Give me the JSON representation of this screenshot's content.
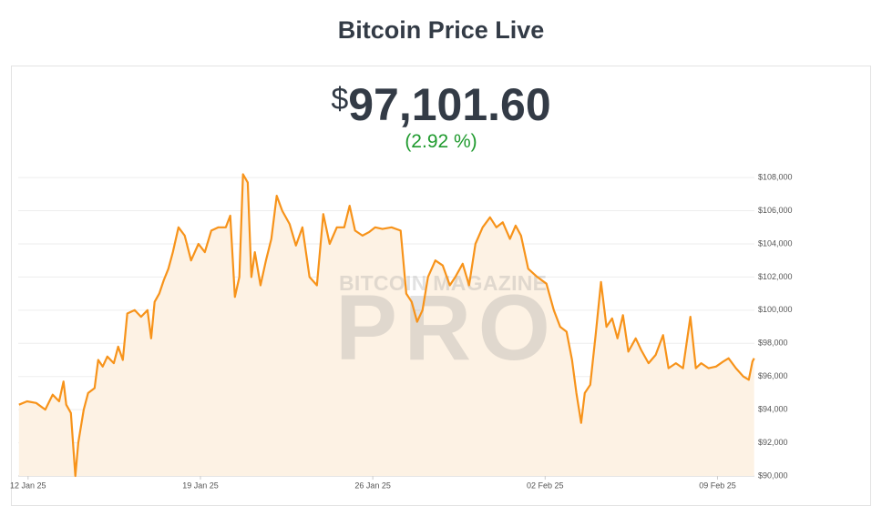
{
  "header": {
    "title": "Bitcoin Price Live",
    "currency": "$",
    "price": "97,101.60",
    "change": "(2.92 %)"
  },
  "watermark": {
    "top": "BITCOIN MAGAZINE",
    "main": "PRO"
  },
  "chart_data": {
    "type": "line",
    "x": [
      -0.37,
      -0.04,
      0.33,
      0.7,
      1.0,
      1.26,
      1.44,
      1.55,
      1.74,
      1.92,
      2.04,
      2.26,
      2.44,
      2.7,
      2.85,
      3.03,
      3.22,
      3.48,
      3.66,
      3.85,
      4.03,
      4.33,
      4.59,
      4.85,
      5.0,
      5.14,
      5.33,
      5.51,
      5.7,
      5.88,
      6.11,
      6.36,
      6.62,
      6.92,
      7.18,
      7.44,
      7.73,
      8.03,
      8.21,
      8.4,
      8.58,
      8.73,
      8.92,
      9.07,
      9.21,
      9.44,
      9.66,
      9.88,
      10.1,
      10.32,
      10.62,
      10.88,
      11.14,
      11.43,
      11.73,
      11.99,
      12.25,
      12.54,
      12.84,
      13.06,
      13.28,
      13.58,
      13.84,
      14.1,
      14.39,
      14.76,
      15.13,
      15.36,
      15.58,
      15.8,
      16.02,
      16.24,
      16.54,
      16.84,
      17.13,
      17.35,
      17.65,
      17.91,
      18.17,
      18.46,
      18.76,
      19.02,
      19.28,
      19.57,
      19.8,
      20.02,
      20.31,
      20.68,
      21.05,
      21.35,
      21.61,
      21.87,
      22.09,
      22.27,
      22.46,
      22.61,
      22.83,
      23.05,
      23.27,
      23.49,
      23.72,
      23.94,
      24.16,
      24.38,
      24.68,
      24.9,
      25.2,
      25.49,
      25.79,
      26.01,
      26.31,
      26.6,
      26.9,
      27.12,
      27.34,
      27.64,
      27.94,
      28.23,
      28.45,
      28.75,
      29.05,
      29.27,
      29.42,
      29.49
    ],
    "series": [
      {
        "name": "Bitcoin Price",
        "color": "#f7931a",
        "values": [
          94300,
          94500,
          94400,
          94000,
          94900,
          94500,
          95700,
          94300,
          93800,
          90000,
          92000,
          94000,
          95000,
          95300,
          97000,
          96600,
          97200,
          96800,
          97800,
          97000,
          99800,
          100000,
          99600,
          100000,
          98300,
          100500,
          101000,
          101800,
          102500,
          103500,
          105000,
          104500,
          103000,
          104000,
          103500,
          104800,
          105000,
          105000,
          105700,
          100800,
          102000,
          108200,
          107700,
          102000,
          103500,
          101500,
          103000,
          104300,
          106900,
          106000,
          105200,
          103900,
          105000,
          102000,
          101500,
          105800,
          104000,
          105000,
          105000,
          106300,
          104800,
          104500,
          104700,
          105000,
          104900,
          105000,
          104800,
          101000,
          100500,
          99300,
          100000,
          102000,
          103000,
          102700,
          101500,
          102000,
          102800,
          101500,
          104000,
          105000,
          105600,
          105000,
          105300,
          104300,
          105100,
          104500,
          102500,
          102000,
          101600,
          100000,
          99000,
          98700,
          97000,
          95000,
          93200,
          95000,
          95500,
          98500,
          101700,
          99000,
          99500,
          98300,
          99700,
          97500,
          98300,
          97600,
          96800,
          97300,
          98500,
          96500,
          96800,
          96500,
          99600,
          96500,
          96800,
          96500,
          96600,
          96900,
          97100,
          96500,
          96000,
          95800,
          96900,
          97100
        ]
      }
    ],
    "xlim": [
      -0.4,
      29.5
    ],
    "xticks": [
      {
        "value": 0,
        "label": "12 Jan 25"
      },
      {
        "value": 7,
        "label": "19 Jan 25"
      },
      {
        "value": 14,
        "label": "26 Jan 25"
      },
      {
        "value": 21,
        "label": "02 Feb 25"
      },
      {
        "value": 28,
        "label": "09 Feb 25"
      }
    ],
    "ylim": [
      90000,
      108500
    ],
    "yticks": [
      {
        "value": 90000,
        "label": "$90,000"
      },
      {
        "value": 92000,
        "label": "$92,000"
      },
      {
        "value": 94000,
        "label": "$94,000"
      },
      {
        "value": 96000,
        "label": "$96,000"
      },
      {
        "value": 98000,
        "label": "$98,000"
      },
      {
        "value": 100000,
        "label": "$100,000"
      },
      {
        "value": 102000,
        "label": "$102,000"
      },
      {
        "value": 104000,
        "label": "$104,000"
      },
      {
        "value": 106000,
        "label": "$106,000"
      },
      {
        "value": 108000,
        "label": "$108,000"
      }
    ],
    "grid": true,
    "area_color": "#fdf2e4"
  }
}
